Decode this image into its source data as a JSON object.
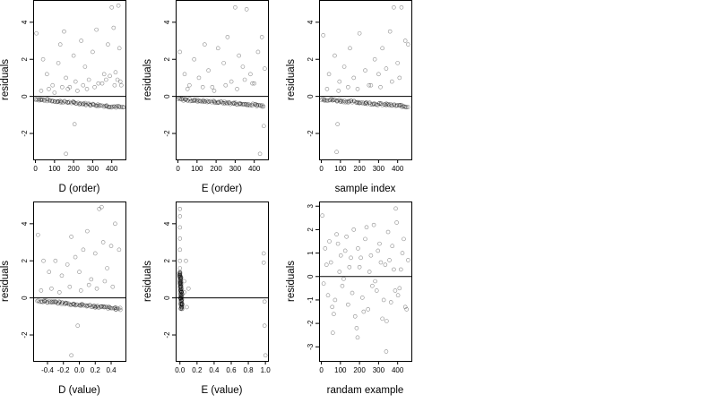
{
  "chart_data": [
    {
      "type": "scatter",
      "xlabel": "D (order)",
      "ylabel": "residuals",
      "xlim": [
        -12,
        472
      ],
      "ylim": [
        -3.4,
        5.2
      ],
      "xticks": [
        "0",
        "100",
        "200",
        "300",
        "400"
      ],
      "yticks": [
        "-2",
        "0",
        "2",
        "4"
      ],
      "reference_line_y": 0,
      "points": {
        "x": [
          5,
          40,
          60,
          90,
          120,
          130,
          150,
          160,
          180,
          200,
          210,
          240,
          260,
          280,
          300,
          320,
          330,
          360,
          380,
          400,
          410,
          420,
          430,
          440,
          450,
          30,
          70,
          100,
          140,
          170,
          220,
          250,
          270,
          310,
          350,
          370,
          390,
          415,
          445,
          160,
          205,
          435
        ],
        "y": [
          3.4,
          2.0,
          1.2,
          0.6,
          1.8,
          2.8,
          3.5,
          1.0,
          0.5,
          2.2,
          0.8,
          3.0,
          1.6,
          0.9,
          2.4,
          3.6,
          0.7,
          1.2,
          2.8,
          4.8,
          3.7,
          1.3,
          0.9,
          2.6,
          0.6,
          0.3,
          0.4,
          0.2,
          0.5,
          0.4,
          0.3,
          0.6,
          0.4,
          0.5,
          0.7,
          0.9,
          1.1,
          0.6,
          0.8,
          -3.1,
          -1.5,
          4.9
        ]
      },
      "dense_band": {
        "x_start": 0,
        "x_end": 460,
        "y_start": -0.15,
        "y_end": -0.6
      }
    },
    {
      "type": "scatter",
      "xlabel": "E (order)",
      "ylabel": "residuals",
      "xlim": [
        -12,
        472
      ],
      "ylim": [
        -3.4,
        5.2
      ],
      "xticks": [
        "0",
        "100",
        "200",
        "300",
        "400"
      ],
      "yticks": [
        "-2",
        "0",
        "2",
        "4"
      ],
      "reference_line_y": 0,
      "points": {
        "x": [
          10,
          35,
          60,
          85,
          110,
          140,
          160,
          180,
          210,
          240,
          260,
          280,
          300,
          320,
          340,
          360,
          380,
          400,
          420,
          440,
          455,
          50,
          130,
          190,
          250,
          310,
          350,
          390,
          430,
          450
        ],
        "y": [
          2.4,
          1.2,
          0.6,
          2.0,
          1.0,
          2.8,
          1.4,
          0.5,
          2.6,
          1.8,
          3.2,
          0.8,
          4.8,
          2.2,
          1.6,
          4.7,
          1.2,
          0.7,
          2.4,
          3.2,
          1.5,
          0.4,
          0.5,
          0.3,
          0.6,
          0.4,
          0.9,
          0.7,
          -3.1,
          -1.6
        ]
      },
      "dense_band": {
        "x_start": 0,
        "x_end": 450,
        "y_start": -0.15,
        "y_end": -0.5
      }
    },
    {
      "type": "scatter",
      "xlabel": "sample index",
      "ylabel": "residuals",
      "xlim": [
        -12,
        472
      ],
      "ylim": [
        -3.4,
        5.2
      ],
      "xticks": [
        "0",
        "100",
        "200",
        "300",
        "400"
      ],
      "yticks": [
        "-2",
        "0",
        "2",
        "4"
      ],
      "reference_line_y": 0,
      "points": {
        "x": [
          10,
          40,
          70,
          95,
          120,
          150,
          170,
          200,
          230,
          260,
          280,
          300,
          320,
          340,
          360,
          380,
          400,
          420,
          440,
          455,
          30,
          90,
          140,
          190,
          250,
          310,
          370,
          410,
          80,
          85
        ],
        "y": [
          3.3,
          1.2,
          2.2,
          0.8,
          1.6,
          2.6,
          1.0,
          3.4,
          1.4,
          0.6,
          2.0,
          1.2,
          2.6,
          1.5,
          3.5,
          4.8,
          1.8,
          4.8,
          3.0,
          2.8,
          0.4,
          0.3,
          0.5,
          0.4,
          0.6,
          0.5,
          0.8,
          1.0,
          -3.0,
          -1.5
        ]
      },
      "dense_band": {
        "x_start": 0,
        "x_end": 455,
        "y_start": -0.15,
        "y_end": -0.55
      }
    },
    {
      "type": "scatter",
      "xlabel": "D (value)",
      "ylabel": "residuals",
      "xlim": [
        -0.58,
        0.58
      ],
      "ylim": [
        -3.4,
        5.2
      ],
      "xticks": [
        "-0.4",
        "-0.2",
        "0.0",
        "0.2",
        "0.4"
      ],
      "yticks": [
        "-2",
        "0",
        "2",
        "4"
      ],
      "reference_line_y": 0,
      "points": {
        "x": [
          -0.52,
          -0.45,
          -0.38,
          -0.3,
          -0.22,
          -0.15,
          -0.1,
          -0.05,
          0.0,
          0.05,
          0.1,
          0.15,
          0.2,
          0.25,
          0.3,
          0.35,
          0.4,
          0.45,
          0.5,
          -0.48,
          -0.35,
          -0.25,
          -0.12,
          0.02,
          0.12,
          0.22,
          0.32,
          0.42,
          -0.1,
          -0.02,
          0.28
        ],
        "y": [
          3.4,
          2.0,
          1.4,
          2.0,
          1.2,
          1.8,
          3.3,
          2.2,
          1.4,
          2.6,
          3.6,
          1.0,
          2.4,
          4.8,
          3.0,
          1.6,
          2.8,
          4.0,
          2.6,
          0.4,
          0.5,
          0.3,
          0.6,
          0.4,
          0.7,
          0.5,
          0.9,
          0.6,
          -3.1,
          -1.5,
          4.9
        ]
      },
      "dense_band": {
        "x_start": -0.52,
        "x_end": 0.52,
        "y_start": -0.15,
        "y_end": -0.6
      }
    },
    {
      "type": "scatter",
      "xlabel": "E (value)",
      "ylabel": "residuals",
      "xlim": [
        -0.05,
        1.03
      ],
      "ylim": [
        -3.4,
        5.2
      ],
      "xticks": [
        "0.0",
        "0.2",
        "0.4",
        "0.6",
        "0.8",
        "1.0"
      ],
      "yticks": [
        "-2",
        "0",
        "2",
        "4"
      ],
      "reference_line_y": 0,
      "points": {
        "x": [
          0.0,
          0.0,
          0.0,
          0.0,
          0.0,
          0.0,
          0.0,
          0.0,
          0.0,
          0.01,
          0.01,
          0.01,
          0.02,
          0.03,
          0.05,
          0.07,
          0.1,
          0.08,
          0.05,
          0.98,
          0.98,
          0.99,
          0.99,
          1.0
        ],
        "y": [
          4.8,
          4.4,
          3.8,
          3.2,
          2.6,
          2.0,
          1.6,
          1.2,
          0.8,
          0.4,
          0.1,
          -0.3,
          -0.6,
          0.2,
          0.9,
          2.0,
          0.5,
          -0.5,
          0.3,
          2.4,
          1.9,
          -0.2,
          -1.5,
          -3.1
        ]
      },
      "dense_band": {
        "x_start": 0.0,
        "x_end": 0.02,
        "y_start": 1.4,
        "y_end": -0.6
      }
    },
    {
      "type": "scatter",
      "xlabel": "randam example",
      "ylabel": "residuals",
      "xlim": [
        -12,
        472
      ],
      "ylim": [
        -3.6,
        3.2
      ],
      "xticks": [
        "0",
        "100",
        "200",
        "300",
        "400"
      ],
      "yticks": [
        "-3",
        "-2",
        "-1",
        "0",
        "1",
        "2",
        "3"
      ],
      "reference_line_y": 0,
      "points": {
        "x": [
          5,
          20,
          35,
          50,
          65,
          80,
          95,
          110,
          125,
          140,
          155,
          170,
          185,
          200,
          215,
          230,
          245,
          260,
          275,
          290,
          305,
          320,
          335,
          350,
          365,
          380,
          395,
          410,
          425,
          440,
          455,
          12,
          42,
          72,
          102,
          132,
          162,
          192,
          222,
          252,
          282,
          312,
          342,
          372,
          402,
          432,
          27,
          57,
          87,
          117,
          147,
          177,
          207,
          237,
          267,
          297,
          327,
          357,
          387,
          417,
          447,
          60,
          190,
          340,
          390
        ],
        "y": [
          2.6,
          1.2,
          -0.8,
          0.6,
          -1.6,
          1.8,
          0.2,
          -0.4,
          1.1,
          -1.2,
          0.8,
          2.0,
          -2.2,
          0.4,
          -0.9,
          1.6,
          -1.4,
          0.9,
          2.2,
          -0.6,
          1.4,
          -1.8,
          0.5,
          1.9,
          -1.1,
          0.3,
          2.3,
          -0.5,
          1.0,
          -1.3,
          0.7,
          -0.3,
          1.5,
          -1.0,
          0.9,
          1.7,
          -0.7,
          1.2,
          -1.5,
          0.2,
          -0.2,
          0.6,
          -1.9,
          1.3,
          -0.8,
          1.6,
          0.5,
          -1.3,
          1.4,
          -0.1,
          0.4,
          -1.7,
          0.8,
          2.1,
          -0.4,
          1.1,
          -1.0,
          0.7,
          -0.6,
          0.3,
          -1.4,
          -2.4,
          -2.6,
          -3.2,
          2.9
        ]
      }
    }
  ]
}
